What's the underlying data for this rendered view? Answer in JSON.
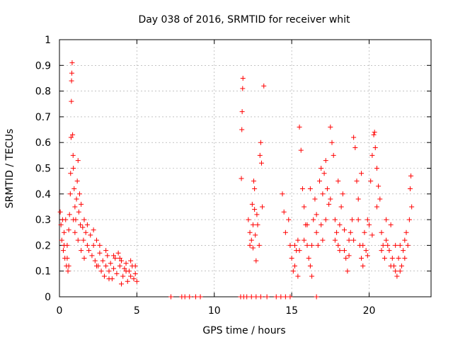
{
  "chart_data": {
    "type": "scatter",
    "title": "Day 038 of 2016, SRMTID for receiver whit",
    "xlabel": "GPS time / hours",
    "ylabel": "SRMTID / TECUs",
    "xlim": [
      0,
      24
    ],
    "ylim": [
      0,
      1
    ],
    "x_ticks": [
      {
        "value": 0,
        "label": "0"
      },
      {
        "value": 5,
        "label": "5"
      },
      {
        "value": 10,
        "label": "10"
      },
      {
        "value": 15,
        "label": "15"
      },
      {
        "value": 20,
        "label": "20"
      }
    ],
    "y_ticks": [
      {
        "value": 0,
        "label": "0"
      },
      {
        "value": 0.1,
        "label": "0.1"
      },
      {
        "value": 0.2,
        "label": "0.2"
      },
      {
        "value": 0.3,
        "label": "0.3"
      },
      {
        "value": 0.4,
        "label": "0.4"
      },
      {
        "value": 0.5,
        "label": "0.5"
      },
      {
        "value": 0.6,
        "label": "0.6"
      },
      {
        "value": 0.7,
        "label": "0.7"
      },
      {
        "value": 0.8,
        "label": "0.8"
      },
      {
        "value": 0.9,
        "label": "0.9"
      },
      {
        "value": 1,
        "label": "1"
      }
    ],
    "grid": true,
    "marker": "+",
    "color": "#ff0000",
    "series": [
      {
        "name": "SRMTID",
        "points": [
          [
            0.05,
            0.33
          ],
          [
            0.1,
            0.28
          ],
          [
            0.15,
            0.22
          ],
          [
            0.2,
            0.3
          ],
          [
            0.25,
            0.18
          ],
          [
            0.3,
            0.25
          ],
          [
            0.35,
            0.15
          ],
          [
            0.4,
            0.3
          ],
          [
            0.45,
            0.12
          ],
          [
            0.5,
            0.2
          ],
          [
            0.55,
            0.1
          ],
          [
            0.6,
            0.26
          ],
          [
            0.65,
            0.32
          ],
          [
            0.7,
            0.4
          ],
          [
            0.72,
            0.48
          ],
          [
            0.75,
            0.62
          ],
          [
            0.77,
            0.76
          ],
          [
            0.78,
            0.84
          ],
          [
            0.8,
            0.87
          ],
          [
            0.82,
            0.91
          ],
          [
            0.85,
            0.63
          ],
          [
            0.88,
            0.55
          ],
          [
            0.9,
            0.5
          ],
          [
            0.95,
            0.42
          ],
          [
            1.0,
            0.35
          ],
          [
            1.05,
            0.3
          ],
          [
            1.1,
            0.38
          ],
          [
            1.15,
            0.45
          ],
          [
            1.2,
            0.53
          ],
          [
            1.25,
            0.33
          ],
          [
            1.3,
            0.4
          ],
          [
            1.35,
            0.28
          ],
          [
            1.4,
            0.36
          ],
          [
            1.5,
            0.27
          ],
          [
            1.55,
            0.22
          ],
          [
            1.6,
            0.3
          ],
          [
            1.7,
            0.25
          ],
          [
            1.8,
            0.2
          ],
          [
            1.9,
            0.18
          ],
          [
            2.0,
            0.24
          ],
          [
            2.1,
            0.16
          ],
          [
            2.2,
            0.2
          ],
          [
            2.3,
            0.14
          ],
          [
            2.4,
            0.22
          ],
          [
            2.5,
            0.12
          ],
          [
            2.6,
            0.17
          ],
          [
            2.7,
            0.1
          ],
          [
            2.8,
            0.14
          ],
          [
            2.9,
            0.08
          ],
          [
            3.0,
            0.12
          ],
          [
            3.1,
            0.16
          ],
          [
            3.2,
            0.1
          ],
          [
            3.3,
            0.13
          ],
          [
            3.4,
            0.07
          ],
          [
            3.5,
            0.11
          ],
          [
            3.6,
            0.15
          ],
          [
            3.7,
            0.09
          ],
          [
            3.8,
            0.17
          ],
          [
            3.9,
            0.12
          ],
          [
            4.0,
            0.14
          ],
          [
            4.1,
            0.08
          ],
          [
            4.2,
            0.11
          ],
          [
            4.3,
            0.13
          ],
          [
            4.4,
            0.06
          ],
          [
            4.5,
            0.1
          ],
          [
            4.6,
            0.08
          ],
          [
            4.7,
            0.12
          ],
          [
            4.8,
            0.07
          ],
          [
            4.9,
            0.09
          ],
          [
            5.0,
            0.06
          ],
          [
            0.3,
            0.2
          ],
          [
            0.5,
            0.15
          ],
          [
            0.6,
            0.12
          ],
          [
            1.2,
            0.22
          ],
          [
            1.4,
            0.18
          ],
          [
            1.8,
            0.28
          ],
          [
            2.2,
            0.26
          ],
          [
            2.6,
            0.2
          ],
          [
            3.0,
            0.18
          ],
          [
            3.5,
            0.16
          ],
          [
            3.9,
            0.15
          ],
          [
            4.3,
            0.1
          ],
          [
            4.6,
            0.14
          ],
          [
            4.9,
            0.12
          ],
          [
            0.9,
            0.3
          ],
          [
            1.0,
            0.25
          ],
          [
            1.6,
            0.15
          ],
          [
            2.4,
            0.12
          ],
          [
            3.2,
            0.07
          ],
          [
            4.0,
            0.05
          ],
          [
            7.2,
            0.0
          ],
          [
            7.9,
            0.0
          ],
          [
            8.1,
            0.0
          ],
          [
            8.4,
            0.0
          ],
          [
            8.8,
            0.0
          ],
          [
            9.1,
            0.0
          ],
          [
            11.7,
            0.0
          ],
          [
            11.9,
            0.0
          ],
          [
            12.1,
            0.0
          ],
          [
            12.4,
            0.0
          ],
          [
            12.7,
            0.0
          ],
          [
            13.0,
            0.0
          ],
          [
            13.4,
            0.0
          ],
          [
            14.0,
            0.0
          ],
          [
            14.3,
            0.0
          ],
          [
            14.6,
            0.0
          ],
          [
            14.9,
            0.0
          ],
          [
            16.6,
            0.0
          ],
          [
            11.75,
            0.46
          ],
          [
            11.78,
            0.65
          ],
          [
            11.8,
            0.72
          ],
          [
            11.83,
            0.81
          ],
          [
            11.85,
            0.85
          ],
          [
            12.2,
            0.3
          ],
          [
            12.3,
            0.25
          ],
          [
            12.4,
            0.22
          ],
          [
            12.5,
            0.28
          ],
          [
            12.6,
            0.34
          ],
          [
            12.5,
            0.19
          ],
          [
            12.55,
            0.45
          ],
          [
            12.6,
            0.42
          ],
          [
            12.7,
            0.14
          ],
          [
            12.75,
            0.32
          ],
          [
            12.8,
            0.28
          ],
          [
            12.9,
            0.2
          ],
          [
            12.95,
            0.55
          ],
          [
            13.0,
            0.6
          ],
          [
            13.05,
            0.52
          ],
          [
            13.1,
            0.35
          ],
          [
            13.2,
            0.82
          ],
          [
            12.3,
            0.2
          ],
          [
            12.45,
            0.36
          ],
          [
            12.65,
            0.24
          ],
          [
            14.4,
            0.4
          ],
          [
            14.5,
            0.33
          ],
          [
            14.6,
            0.25
          ],
          [
            14.8,
            0.3
          ],
          [
            14.9,
            0.2
          ],
          [
            15.0,
            0.15
          ],
          [
            15.1,
            0.1
          ],
          [
            15.2,
            0.12
          ],
          [
            15.3,
            0.18
          ],
          [
            15.4,
            0.22
          ],
          [
            15.5,
            0.66
          ],
          [
            15.6,
            0.57
          ],
          [
            15.7,
            0.42
          ],
          [
            15.8,
            0.35
          ],
          [
            15.9,
            0.28
          ],
          [
            16.0,
            0.2
          ],
          [
            16.1,
            0.15
          ],
          [
            16.2,
            0.12
          ],
          [
            16.3,
            0.08
          ],
          [
            16.4,
            0.3
          ],
          [
            16.5,
            0.38
          ],
          [
            16.6,
            0.25
          ],
          [
            16.7,
            0.2
          ],
          [
            16.8,
            0.45
          ],
          [
            16.9,
            0.5
          ],
          [
            17.0,
            0.4
          ],
          [
            17.1,
            0.48
          ],
          [
            17.2,
            0.53
          ],
          [
            17.3,
            0.42
          ],
          [
            17.4,
            0.36
          ],
          [
            17.5,
            0.66
          ],
          [
            17.6,
            0.6
          ],
          [
            17.7,
            0.55
          ],
          [
            17.8,
            0.3
          ],
          [
            17.9,
            0.25
          ],
          [
            18.0,
            0.2
          ],
          [
            18.1,
            0.28
          ],
          [
            18.2,
            0.35
          ],
          [
            18.3,
            0.4
          ],
          [
            18.4,
            0.18
          ],
          [
            18.5,
            0.15
          ],
          [
            18.6,
            0.1
          ],
          [
            18.7,
            0.22
          ],
          [
            18.8,
            0.25
          ],
          [
            18.9,
            0.3
          ],
          [
            19.0,
            0.62
          ],
          [
            19.1,
            0.58
          ],
          [
            19.2,
            0.45
          ],
          [
            19.3,
            0.3
          ],
          [
            19.4,
            0.2
          ],
          [
            19.5,
            0.15
          ],
          [
            19.6,
            0.12
          ],
          [
            19.7,
            0.25
          ],
          [
            19.8,
            0.18
          ],
          [
            19.9,
            0.3
          ],
          [
            20.0,
            0.28
          ],
          [
            20.1,
            0.45
          ],
          [
            20.2,
            0.55
          ],
          [
            20.3,
            0.63
          ],
          [
            20.35,
            0.64
          ],
          [
            20.4,
            0.58
          ],
          [
            20.5,
            0.5
          ],
          [
            20.6,
            0.43
          ],
          [
            20.7,
            0.38
          ],
          [
            20.8,
            0.25
          ],
          [
            20.9,
            0.2
          ],
          [
            21.0,
            0.15
          ],
          [
            21.1,
            0.3
          ],
          [
            21.2,
            0.2
          ],
          [
            21.3,
            0.18
          ],
          [
            21.4,
            0.28
          ],
          [
            21.5,
            0.15
          ],
          [
            21.6,
            0.12
          ],
          [
            21.7,
            0.1
          ],
          [
            21.8,
            0.08
          ],
          [
            21.9,
            0.15
          ],
          [
            22.0,
            0.2
          ],
          [
            22.1,
            0.12
          ],
          [
            22.2,
            0.18
          ],
          [
            22.3,
            0.15
          ],
          [
            22.4,
            0.25
          ],
          [
            22.5,
            0.2
          ],
          [
            22.6,
            0.3
          ],
          [
            22.65,
            0.42
          ],
          [
            22.7,
            0.47
          ],
          [
            22.75,
            0.35
          ],
          [
            15.2,
            0.2
          ],
          [
            15.5,
            0.18
          ],
          [
            15.8,
            0.22
          ],
          [
            16.0,
            0.28
          ],
          [
            16.3,
            0.2
          ],
          [
            16.6,
            0.32
          ],
          [
            16.9,
            0.28
          ],
          [
            17.2,
            0.3
          ],
          [
            17.5,
            0.38
          ],
          [
            17.8,
            0.22
          ],
          [
            18.1,
            0.18
          ],
          [
            18.4,
            0.26
          ],
          [
            18.7,
            0.16
          ],
          [
            19.0,
            0.22
          ],
          [
            19.3,
            0.38
          ],
          [
            19.6,
            0.2
          ],
          [
            19.9,
            0.16
          ],
          [
            20.2,
            0.24
          ],
          [
            20.5,
            0.35
          ],
          [
            20.8,
            0.18
          ],
          [
            21.1,
            0.22
          ],
          [
            21.4,
            0.12
          ],
          [
            21.7,
            0.2
          ],
          [
            22.0,
            0.1
          ],
          [
            22.3,
            0.22
          ],
          [
            15.4,
            0.08
          ],
          [
            16.2,
            0.42
          ],
          [
            17.0,
            0.22
          ],
          [
            18.0,
            0.45
          ],
          [
            19.5,
            0.48
          ]
        ]
      }
    ]
  }
}
